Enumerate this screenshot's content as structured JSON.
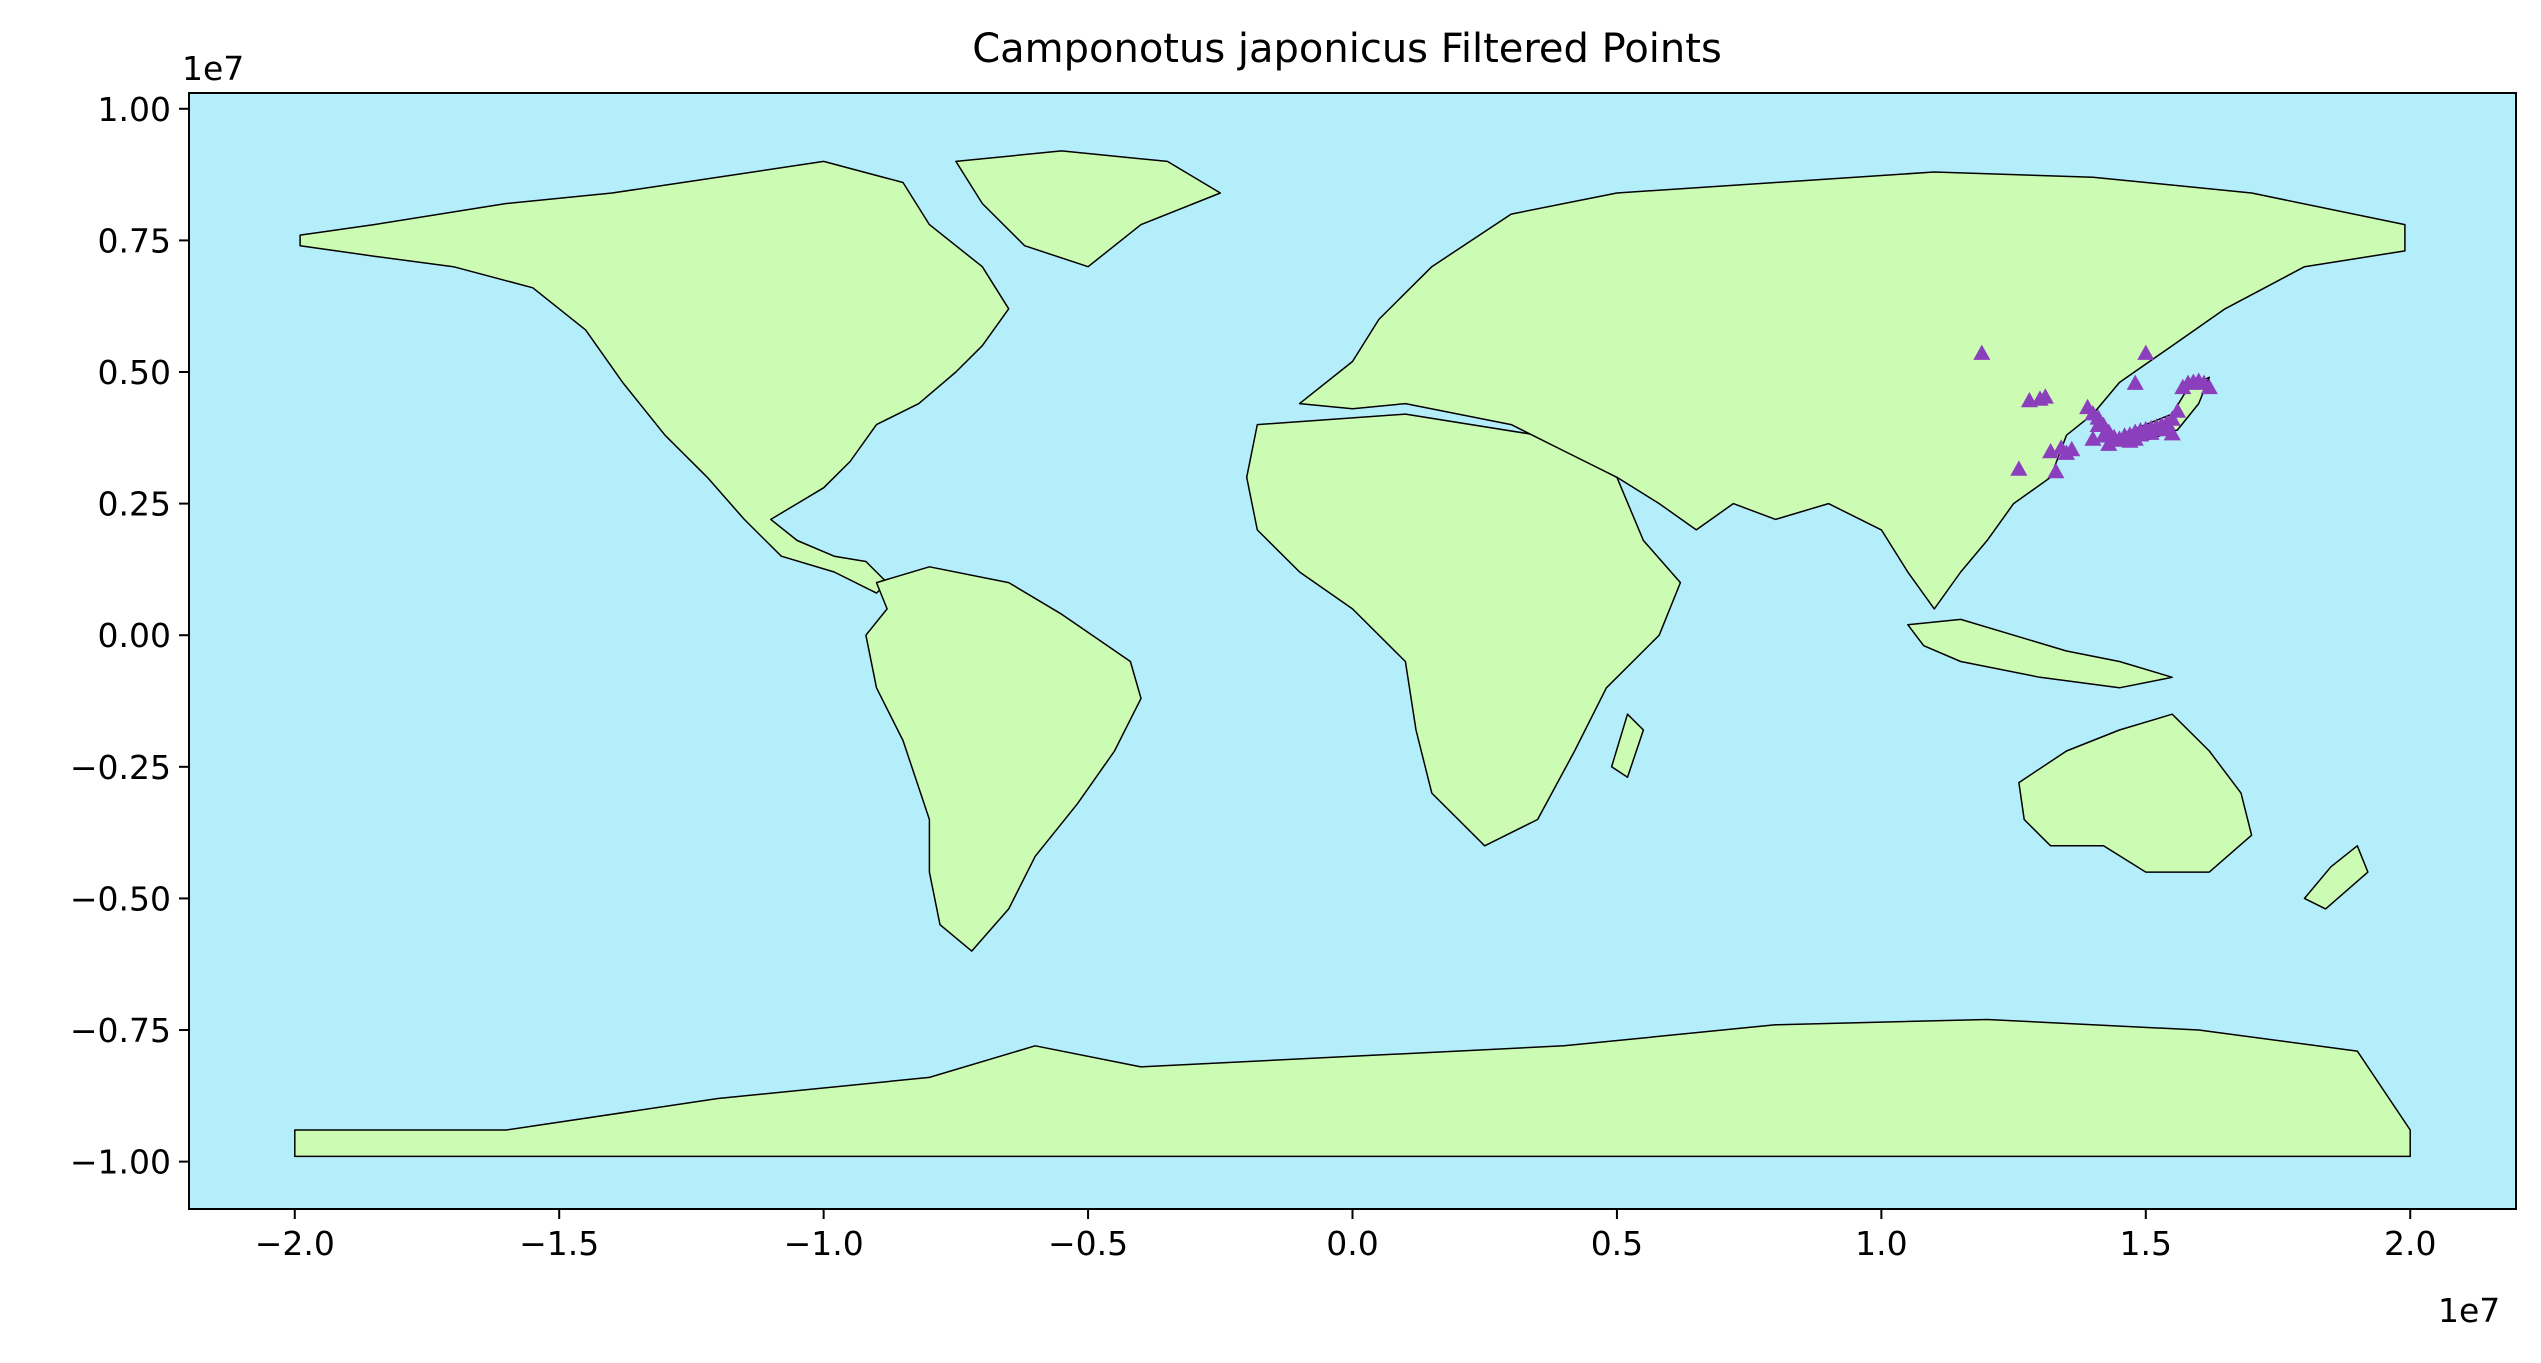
{
  "chart_data": {
    "type": "scatter",
    "title": "Camponotus japonicus Filtered Points",
    "xlabel": "",
    "ylabel": "",
    "x_offset_label": "1e7",
    "y_offset_label": "1e7",
    "xlim": [
      -2.2,
      2.2
    ],
    "ylim": [
      -1.09,
      1.03
    ],
    "xticks": [
      -2.0,
      -1.5,
      -1.0,
      -0.5,
      0.0,
      0.5,
      1.0,
      1.5,
      2.0
    ],
    "xtick_labels": [
      "−2.0",
      "−1.5",
      "−1.0",
      "−0.5",
      "0.0",
      "0.5",
      "1.0",
      "1.5",
      "2.0"
    ],
    "yticks": [
      1.0,
      0.75,
      0.5,
      0.25,
      0.0,
      -0.25,
      -0.5,
      -0.75,
      -1.0
    ],
    "ytick_labels": [
      "1.00",
      "0.75",
      "0.50",
      "0.25",
      "0.00",
      "−0.25",
      "−0.50",
      "−0.75",
      "−1.00"
    ],
    "grid": false,
    "ocean_color": "#b5eefb",
    "land_color": "#ccfcb4",
    "border_color": "#000000",
    "marker": "triangle",
    "marker_color": "#8b3fbd",
    "series": [
      {
        "x": [
          1.19,
          1.26,
          1.3,
          1.31,
          1.28,
          1.32,
          1.34,
          1.35,
          1.33,
          1.36,
          1.39,
          1.4,
          1.41,
          1.42,
          1.43,
          1.44,
          1.45,
          1.46,
          1.47,
          1.48,
          1.49,
          1.5,
          1.51,
          1.52,
          1.53,
          1.54,
          1.55,
          1.56,
          1.57,
          1.58,
          1.59,
          1.6,
          1.61,
          1.4,
          1.41,
          1.42,
          1.43,
          1.44,
          1.47,
          1.48,
          1.49,
          1.51,
          1.53,
          1.55,
          1.5,
          1.48,
          1.62
        ],
        "y": [
          0.535,
          0.315,
          0.448,
          0.452,
          0.445,
          0.348,
          0.355,
          0.345,
          0.31,
          0.352,
          0.432,
          0.42,
          0.412,
          0.398,
          0.385,
          0.375,
          0.372,
          0.378,
          0.38,
          0.385,
          0.388,
          0.39,
          0.392,
          0.395,
          0.398,
          0.402,
          0.41,
          0.425,
          0.47,
          0.478,
          0.48,
          0.482,
          0.478,
          0.372,
          0.398,
          0.378,
          0.362,
          0.37,
          0.368,
          0.372,
          0.38,
          0.383,
          0.39,
          0.382,
          0.535,
          0.478,
          0.47
        ]
      }
    ]
  }
}
